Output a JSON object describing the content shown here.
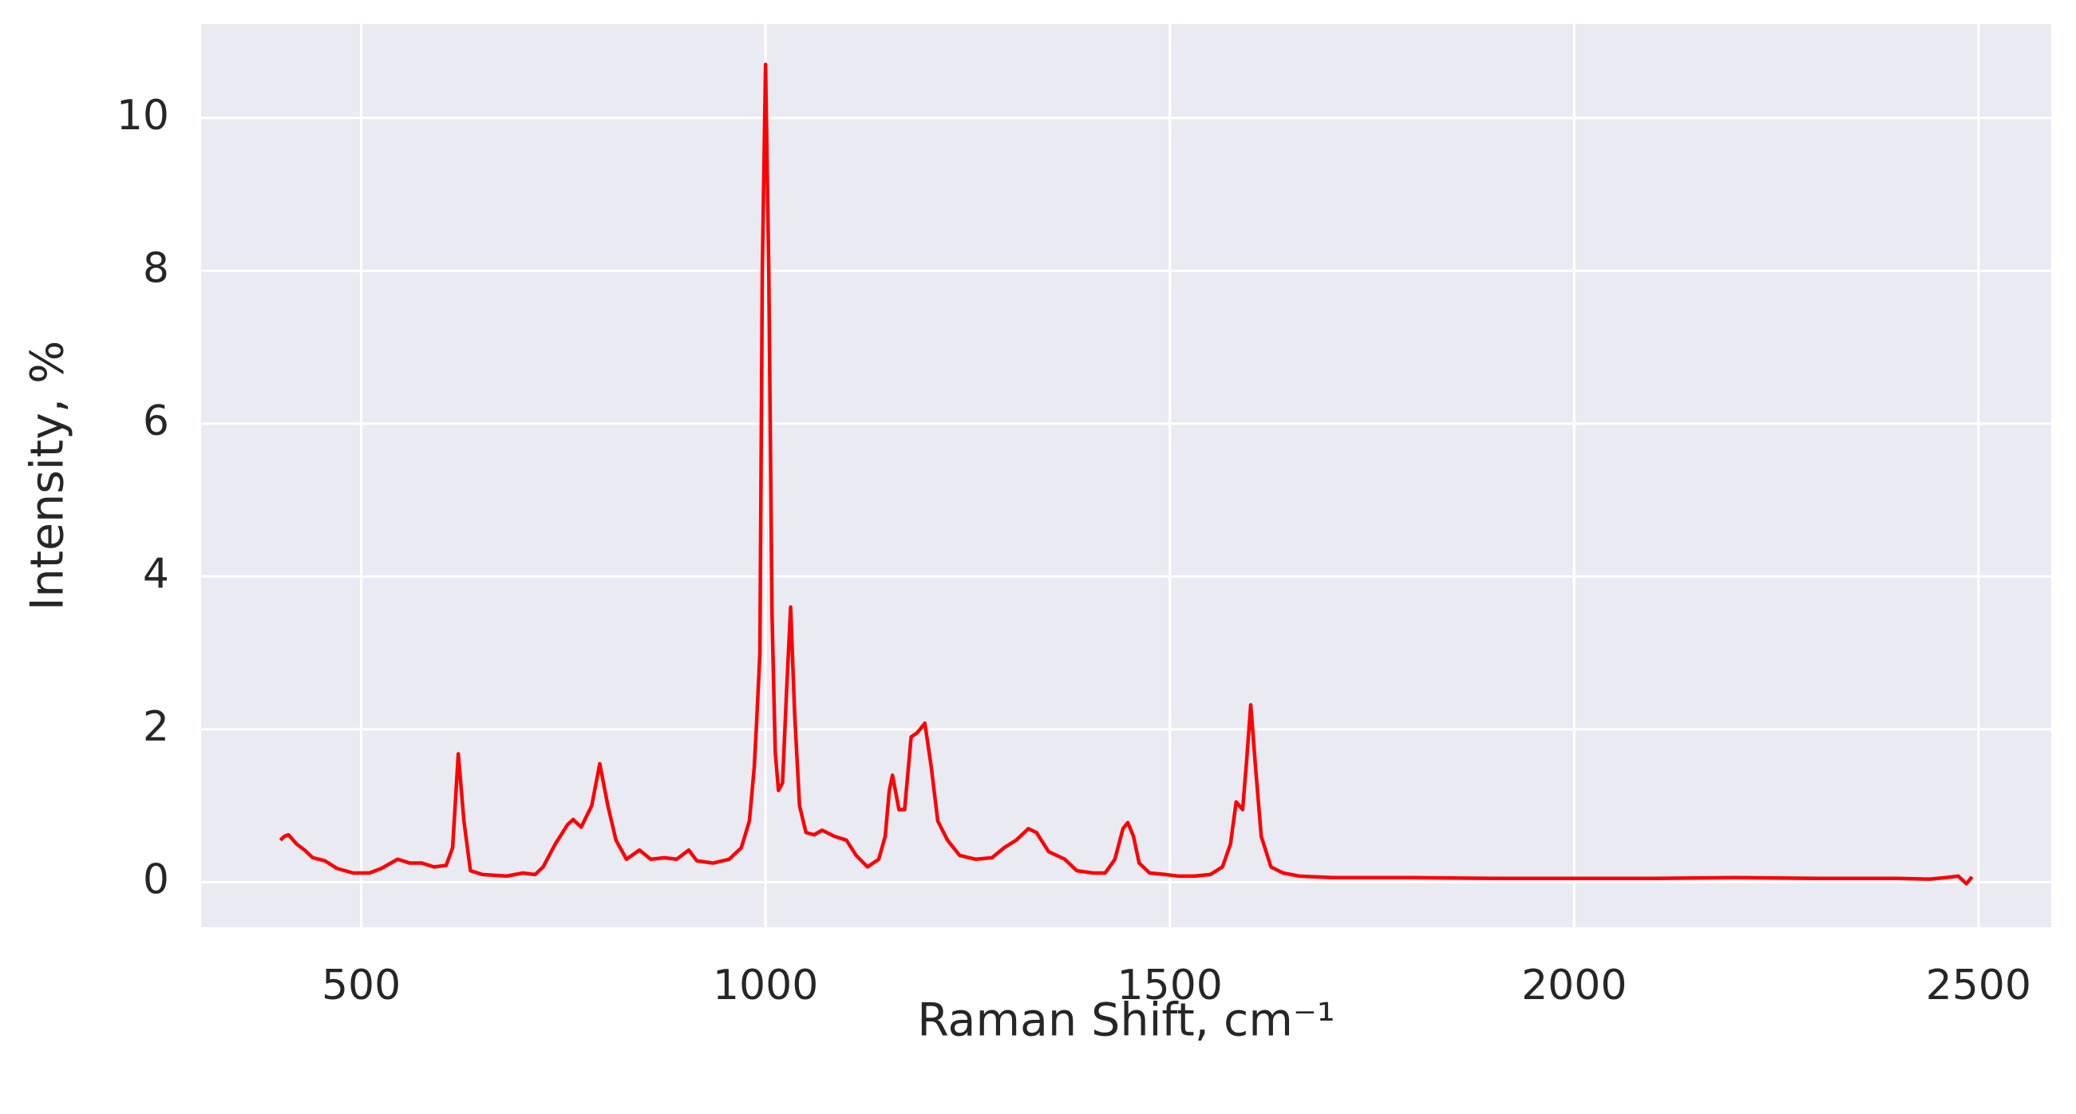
{
  "chart_data": {
    "type": "line",
    "xlabel": "Raman Shift, cm⁻¹",
    "ylabel": "Intensity, %",
    "xlim": [
      302,
      2590
    ],
    "ylim": [
      -0.59,
      11.23
    ],
    "xticks": [
      500,
      1000,
      1500,
      2000,
      2500
    ],
    "yticks": [
      0,
      2,
      4,
      6,
      8,
      10
    ],
    "grid": true,
    "x": [
      400,
      405,
      410,
      420,
      430,
      440,
      455,
      470,
      480,
      490,
      510,
      525,
      545,
      560,
      575,
      590,
      605,
      613,
      620,
      627,
      635,
      650,
      680,
      700,
      715,
      725,
      740,
      755,
      762,
      772,
      785,
      795,
      805,
      815,
      828,
      844,
      858,
      875,
      890,
      905,
      915,
      935,
      955,
      970,
      980,
      986,
      989,
      993,
      996,
      1000,
      1004,
      1008,
      1012,
      1016,
      1021,
      1026,
      1031,
      1036,
      1042,
      1050,
      1060,
      1070,
      1085,
      1100,
      1112,
      1126,
      1140,
      1148,
      1153,
      1157,
      1165,
      1172,
      1180,
      1187,
      1191,
      1197,
      1205,
      1213,
      1225,
      1240,
      1260,
      1280,
      1295,
      1310,
      1325,
      1335,
      1350,
      1370,
      1385,
      1405,
      1420,
      1432,
      1442,
      1448,
      1455,
      1462,
      1475,
      1495,
      1510,
      1530,
      1550,
      1565,
      1575,
      1582,
      1590,
      1595,
      1600,
      1606,
      1613,
      1625,
      1640,
      1660,
      1700,
      1800,
      1900,
      2000,
      2100,
      2200,
      2300,
      2400,
      2440,
      2460,
      2475,
      2485,
      2492
    ],
    "series": [
      {
        "name": "Intensity",
        "color": "#ff0000",
        "values": [
          0.55,
          0.6,
          0.62,
          0.5,
          0.42,
          0.32,
          0.28,
          0.18,
          0.15,
          0.12,
          0.12,
          0.18,
          0.3,
          0.25,
          0.25,
          0.2,
          0.22,
          0.45,
          1.68,
          0.8,
          0.15,
          0.1,
          0.08,
          0.12,
          0.1,
          0.2,
          0.5,
          0.75,
          0.82,
          0.72,
          1.0,
          1.55,
          1.0,
          0.55,
          0.3,
          0.42,
          0.3,
          0.32,
          0.3,
          0.42,
          0.28,
          0.25,
          0.3,
          0.45,
          0.8,
          1.5,
          2.1,
          3.0,
          8.0,
          10.7,
          8.0,
          3.5,
          1.7,
          1.2,
          1.3,
          2.5,
          3.6,
          2.2,
          1.0,
          0.65,
          0.62,
          0.68,
          0.6,
          0.55,
          0.35,
          0.2,
          0.3,
          0.6,
          1.2,
          1.4,
          0.95,
          0.95,
          1.9,
          1.95,
          2.0,
          2.08,
          1.5,
          0.8,
          0.55,
          0.35,
          0.3,
          0.32,
          0.45,
          0.55,
          0.7,
          0.65,
          0.4,
          0.3,
          0.15,
          0.12,
          0.12,
          0.3,
          0.7,
          0.78,
          0.6,
          0.25,
          0.12,
          0.1,
          0.08,
          0.08,
          0.1,
          0.2,
          0.5,
          1.05,
          0.95,
          1.6,
          2.32,
          1.5,
          0.6,
          0.2,
          0.12,
          0.08,
          0.06,
          0.06,
          0.05,
          0.05,
          0.05,
          0.06,
          0.05,
          0.05,
          0.04,
          0.06,
          0.08,
          -0.02,
          0.07
        ]
      }
    ]
  }
}
